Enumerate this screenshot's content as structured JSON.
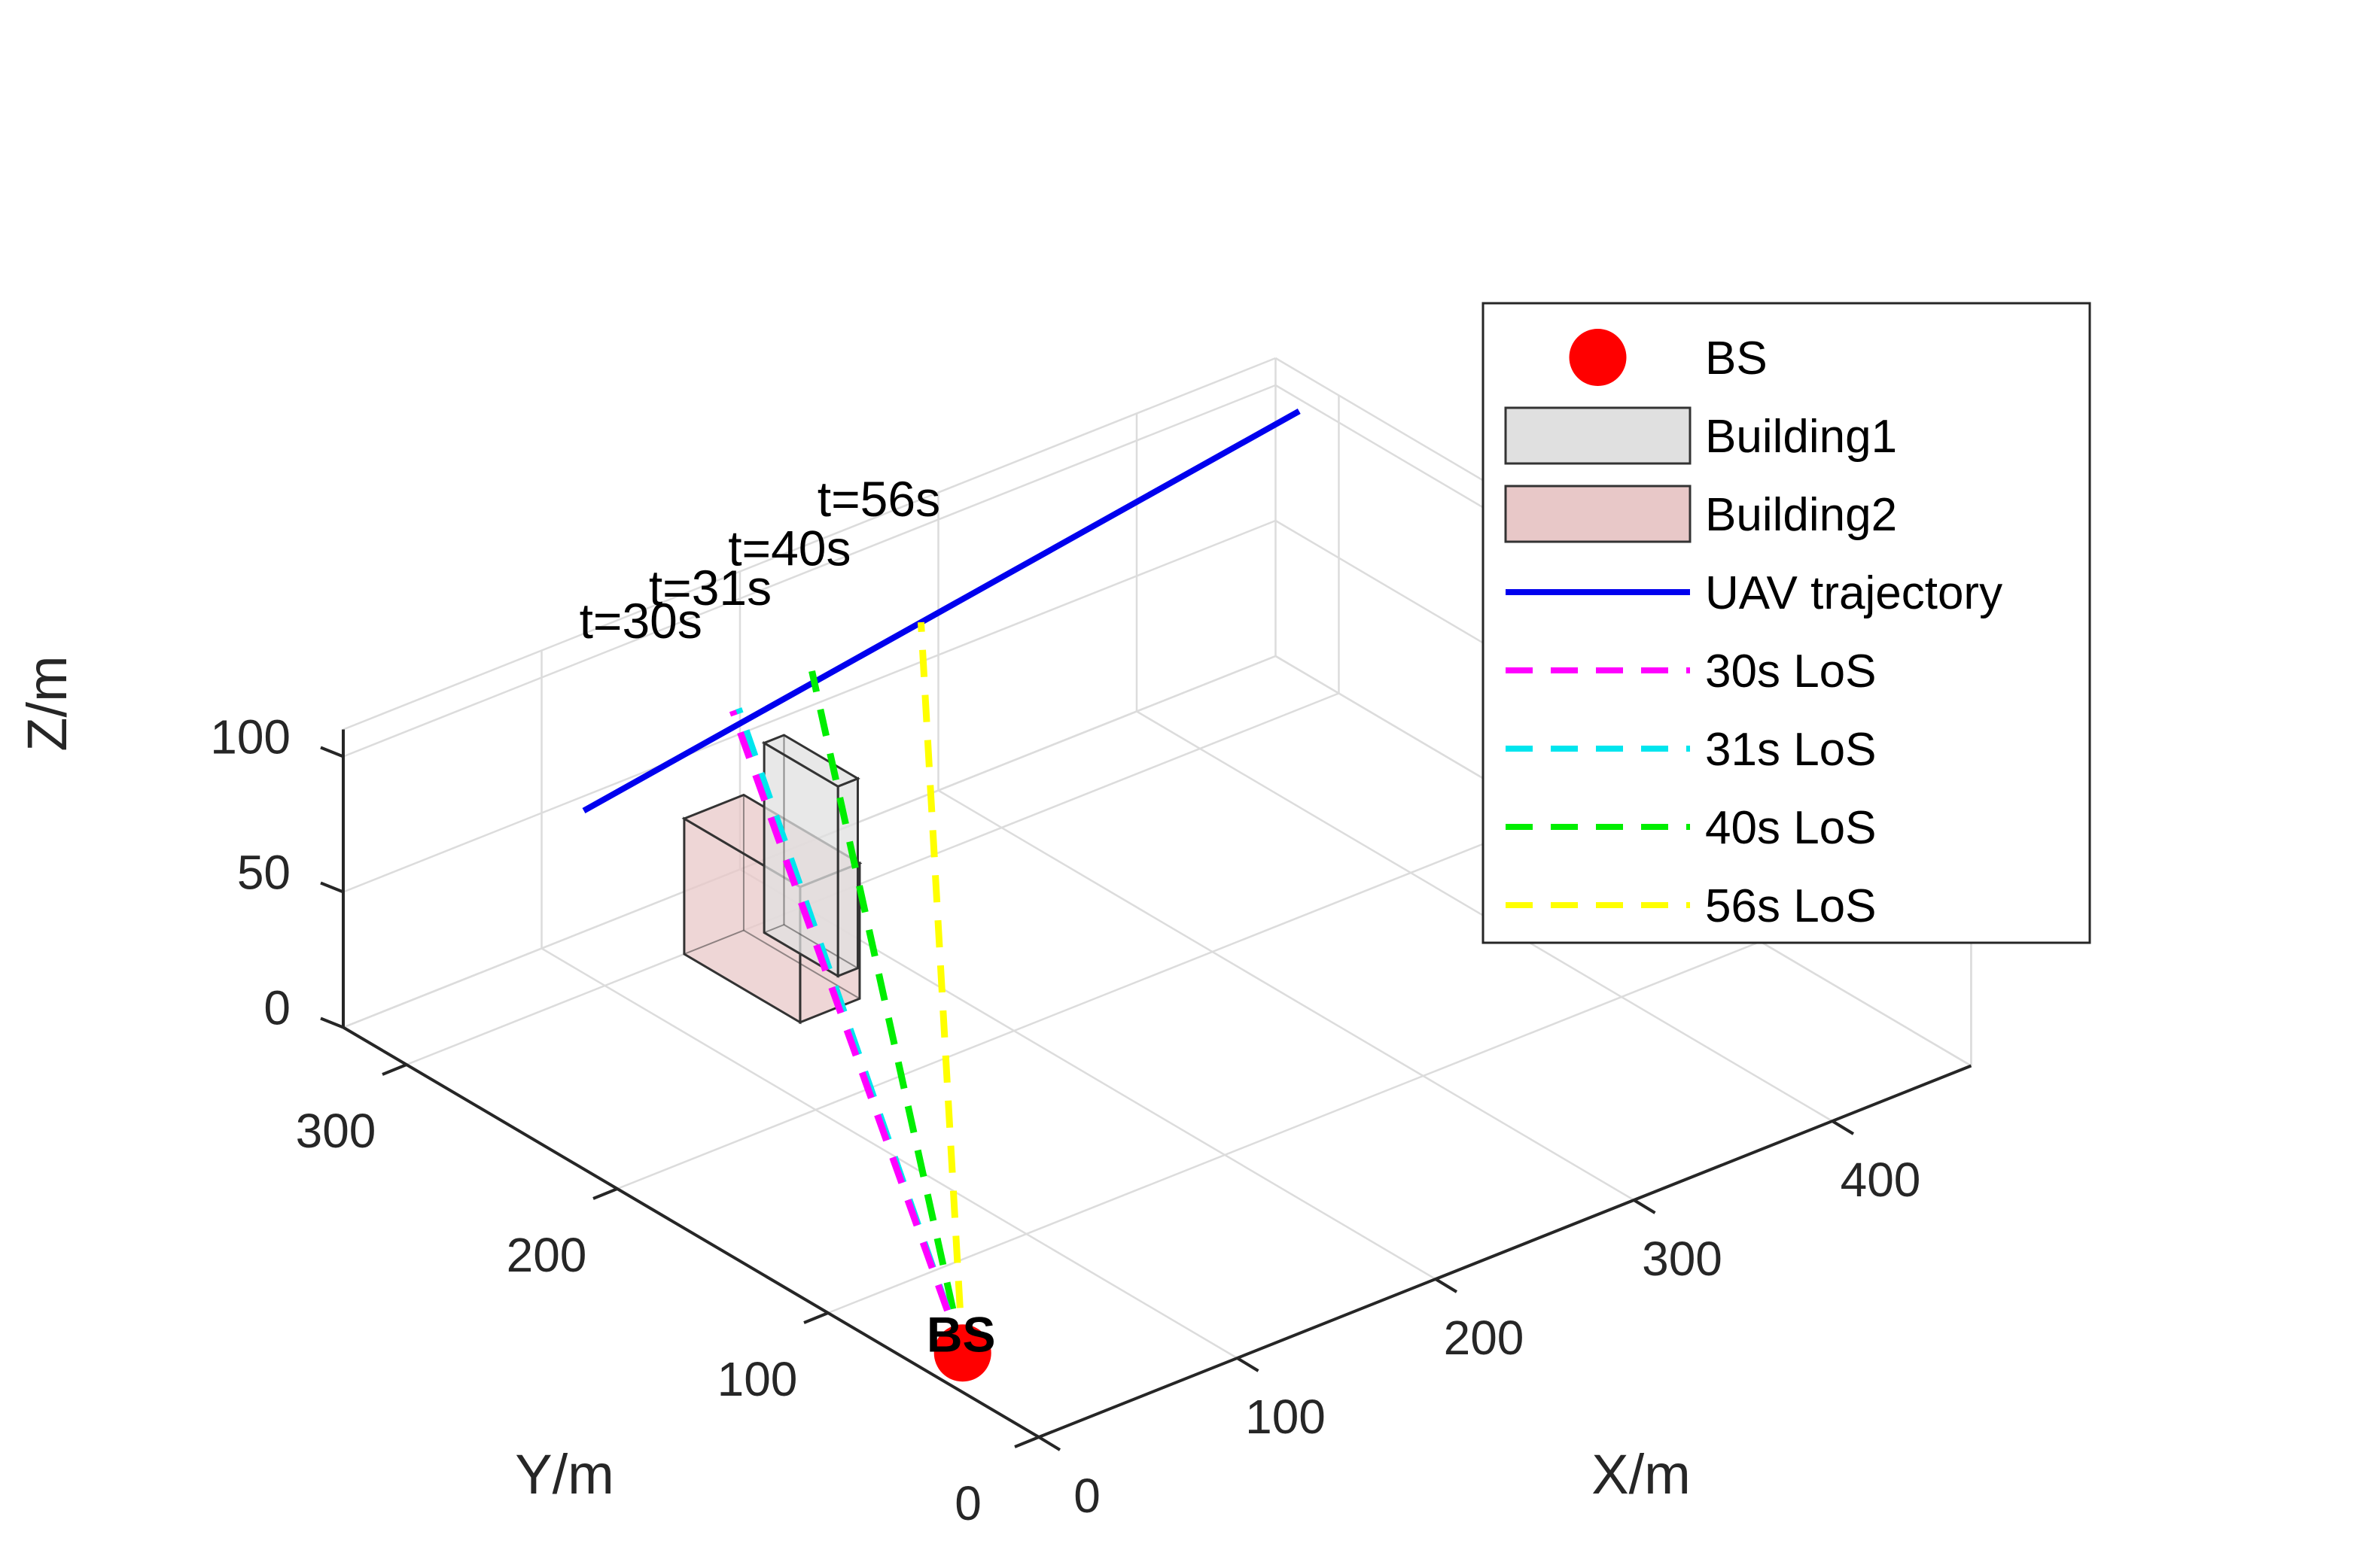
{
  "chart_data": {
    "type": "scatter3d",
    "title": "",
    "xlabel": "X/m",
    "ylabel": "Y/m",
    "zlabel": "Z/m",
    "xlim": [
      0,
      470
    ],
    "ylim": [
      0,
      330
    ],
    "zlim": [
      0,
      110
    ],
    "xticks": [
      0,
      100,
      200,
      300,
      400
    ],
    "yticks": [
      0,
      100,
      200,
      300
    ],
    "zticks": [
      0,
      50,
      100
    ],
    "xtick_labels": [
      "0",
      "100",
      "200",
      "300",
      "400"
    ],
    "ytick_labels": [
      "0",
      "100",
      "200",
      "300"
    ],
    "ztick_labels": [
      "0",
      "50",
      "100"
    ],
    "grid": true,
    "bs": {
      "name": "BS",
      "label": "BS",
      "x": 20,
      "y": 55,
      "z": 0,
      "color": "#ff0000"
    },
    "buildings": [
      {
        "name": "Building1",
        "x": [
          175,
          185
        ],
        "y": [
          260,
          295
        ],
        "z": [
          0,
          70
        ],
        "face_color": "#e0e0e0",
        "edge_color": "#333333"
      },
      {
        "name": "Building2",
        "x": [
          140,
          170
        ],
        "y": [
          245,
          300
        ],
        "z": [
          0,
          50
        ],
        "face_color": "#e8c8c8",
        "edge_color": "#333333"
      }
    ],
    "trajectory": {
      "name": "UAV trajectory",
      "color": "#0000ee",
      "start": {
        "x": 100,
        "y": 310,
        "z": 60
      },
      "end": {
        "x": 450,
        "y": 300,
        "z": 110
      }
    },
    "los": [
      {
        "name": "30s LoS",
        "color": "#ff00ff",
        "t": "t=30s",
        "x": 175,
        "y": 310,
        "z": 75
      },
      {
        "name": "31s LoS",
        "color": "#00e5ee",
        "t": "t=31s",
        "x": 178,
        "y": 310,
        "z": 75
      },
      {
        "name": "40s LoS",
        "color": "#00ee00",
        "t": "t=40s",
        "x": 215,
        "y": 310,
        "z": 78
      },
      {
        "name": "56s LoS",
        "color": "#ffff00",
        "t": "t=56s",
        "x": 270,
        "y": 310,
        "z": 80
      }
    ],
    "time_labels": [
      {
        "text": "t=30s",
        "x": 150,
        "y": 330,
        "z": 100
      },
      {
        "text": "t=31s",
        "x": 185,
        "y": 330,
        "z": 102
      },
      {
        "text": "t=40s",
        "x": 225,
        "y": 330,
        "z": 105
      },
      {
        "text": "t=56s",
        "x": 270,
        "y": 330,
        "z": 110
      }
    ],
    "legend": {
      "placement": "top-right",
      "entries": [
        "BS",
        "Building1",
        "Building2",
        "UAV trajectory",
        "30s LoS",
        "31s LoS",
        "40s LoS",
        "56s LoS"
      ]
    }
  }
}
